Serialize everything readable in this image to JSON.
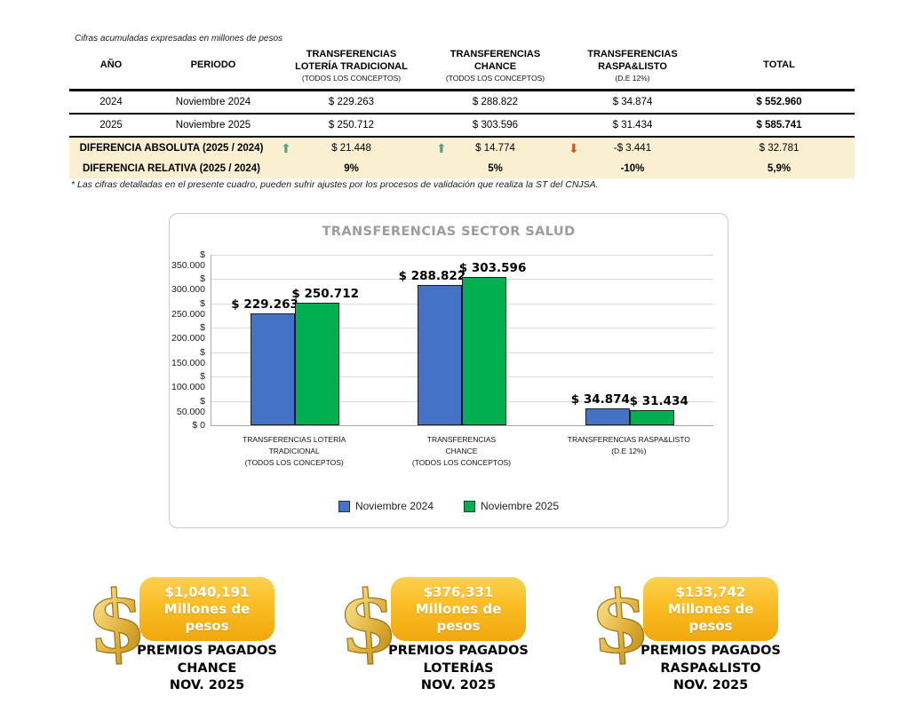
{
  "page": {
    "top_note": "Cifras acumuladas expresadas en millones de pesos",
    "footnote": "* Las cifras detalladas en el presente cuadro, pueden sufrir ajustes por los procesos de validación que realiza la ST del CNJSA."
  },
  "colors": {
    "bar_2024": "#4472C4",
    "bar_2025": "#00B050",
    "highlight_row": "#FAF0D1",
    "arrow_up": "#56A183",
    "arrow_down": "#D0512B",
    "badge_gold_top": "#FDD14F",
    "badge_gold_bottom": "#F0A70C"
  },
  "table": {
    "headers": [
      {
        "title": "AÑO",
        "sub": ""
      },
      {
        "title": "PERIODO",
        "sub": ""
      },
      {
        "title": "TRANSFERENCIAS\nLOTERÍA TRADICIONAL",
        "sub": "(TODOS LOS CONCEPTOS)"
      },
      {
        "title": "TRANSFERENCIAS\nCHANCE",
        "sub": "(TODOS LOS CONCEPTOS)"
      },
      {
        "title": "TRANSFERENCIAS\nRASPA&LISTO",
        "sub": "(D.E 12%)"
      },
      {
        "title": "TOTAL",
        "sub": ""
      }
    ],
    "rows": [
      {
        "cells": [
          "2024",
          "Noviembre 2024",
          "$ 229.263",
          "$ 288.822",
          "$ 34.874",
          "$ 552.960"
        ]
      },
      {
        "cells": [
          "2025",
          "Noviembre 2025",
          "$ 250.712",
          "$ 303.596",
          "$ 31.434",
          "$ 585.741"
        ]
      }
    ],
    "diff_absolute": {
      "label": "DIFERENCIA ABSOLUTA (2025 / 2024)",
      "arrows": [
        "⬆",
        "⬆",
        "⬇"
      ],
      "arrow_directions": [
        "up",
        "up",
        "down"
      ],
      "values": [
        "$ 21.448",
        "$ 14.774",
        "-$ 3.441"
      ],
      "total": "$ 32.781"
    },
    "diff_relative": {
      "label": "DIFERENCIA RELATIVA (2025 / 2024)",
      "values": [
        "9%",
        "5%",
        "-10%"
      ],
      "total": "5,9%"
    }
  },
  "chart_data": {
    "type": "bar",
    "title": "TRANSFERENCIAS SECTOR SALUD",
    "categories": [
      "TRANSFERENCIAS LOTERÍA\nTRADICIONAL\n(TODOS LOS CONCEPTOS)",
      "TRANSFERENCIAS\nCHANCE\n(TODOS LOS CONCEPTOS)",
      "TRANSFERENCIAS RASPA&LISTO\n(D.E 12%)"
    ],
    "series": [
      {
        "name": "Noviembre 2024",
        "color": "#4472C4",
        "values": [
          229263,
          288822,
          34874
        ],
        "labels": [
          "$ 229.263",
          "$ 288.822",
          "$ 34.874"
        ]
      },
      {
        "name": "Noviembre 2025",
        "color": "#00B050",
        "values": [
          250712,
          303596,
          31434
        ],
        "labels": [
          "$ 250.712",
          "$ 303.596",
          "$ 31.434"
        ]
      }
    ],
    "ylim": [
      0,
      350000
    ],
    "yticks": [
      0,
      50000,
      100000,
      150000,
      200000,
      250000,
      300000,
      350000
    ],
    "ytick_labels": [
      "$ 0",
      "$ 50.000",
      "$ 100.000",
      "$ 150.000",
      "$ 200.000",
      "$ 250.000",
      "$ 300.000",
      "$ 350.000"
    ],
    "grid": true,
    "legend_position": "bottom"
  },
  "callouts": [
    {
      "amount": "$1,040,191",
      "unit": "Millones de pesos",
      "label": "PREMIOS PAGADOS\nCHANCE\nNOV. 2025"
    },
    {
      "amount": "$376,331",
      "unit": "Millones de pesos",
      "label": "PREMIOS PAGADOS\nLOTERÍAS\nNOV. 2025"
    },
    {
      "amount": "$133,742",
      "unit": "Millones de pesos",
      "label": "PREMIOS PAGADOS\nRASPA&LISTO\nNOV. 2025"
    }
  ]
}
